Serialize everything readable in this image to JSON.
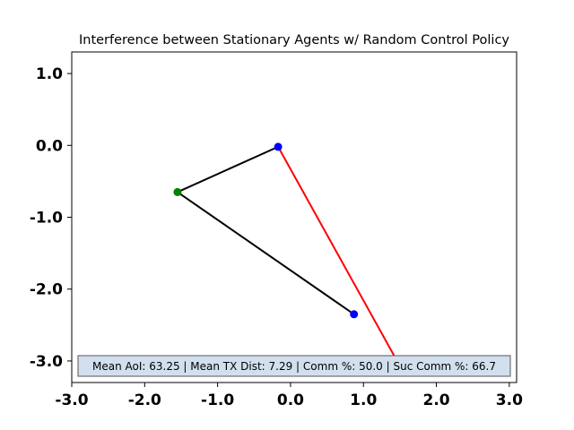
{
  "chart_data": {
    "type": "scatter",
    "title": "Interference between Stationary Agents w/ Random Control Policy",
    "xlabel": "",
    "ylabel": "",
    "xlim": [
      -3.0,
      3.1
    ],
    "ylim": [
      -3.3,
      1.3
    ],
    "grid": false,
    "x_ticks": [
      -3.0,
      -2.0,
      -1.0,
      0.0,
      1.0,
      2.0,
      3.0
    ],
    "x_tick_labels": [
      "-3.0",
      "-2.0",
      "-1.0",
      "0.0",
      "1.0",
      "2.0",
      "3.0"
    ],
    "y_ticks": [
      1.0,
      0.0,
      -1.0,
      -2.0,
      -3.0
    ],
    "y_tick_labels": [
      "1.0",
      "0.0",
      "-1.0",
      "-2.0",
      "-3.0"
    ],
    "points": [
      {
        "name": "agent-1",
        "x": -0.17,
        "y": -0.02,
        "color": "#0000ff"
      },
      {
        "name": "agent-2",
        "x": 0.87,
        "y": -2.35,
        "color": "#0000ff"
      },
      {
        "name": "agent-3",
        "x": 1.45,
        "y": -2.98,
        "color": "#0000ff"
      },
      {
        "name": "base",
        "x": -1.55,
        "y": -0.65,
        "color": "#008000"
      }
    ],
    "links": [
      {
        "from": [
          -1.55,
          -0.65
        ],
        "to": [
          -0.17,
          -0.02
        ],
        "color": "#000000"
      },
      {
        "from": [
          -1.55,
          -0.65
        ],
        "to": [
          0.87,
          -2.35
        ],
        "color": "#000000"
      },
      {
        "from": [
          -0.17,
          -0.02
        ],
        "to": [
          1.45,
          -2.98
        ],
        "color": "#ff0000"
      }
    ],
    "info_box": {
      "text": "Mean AoI: 63.25 | Mean TX Dist: 7.29 | Comm %: 50.0 | Suc Comm %: 66.7",
      "facecolor": "#d2dfee",
      "edgecolor": "#555555"
    }
  }
}
